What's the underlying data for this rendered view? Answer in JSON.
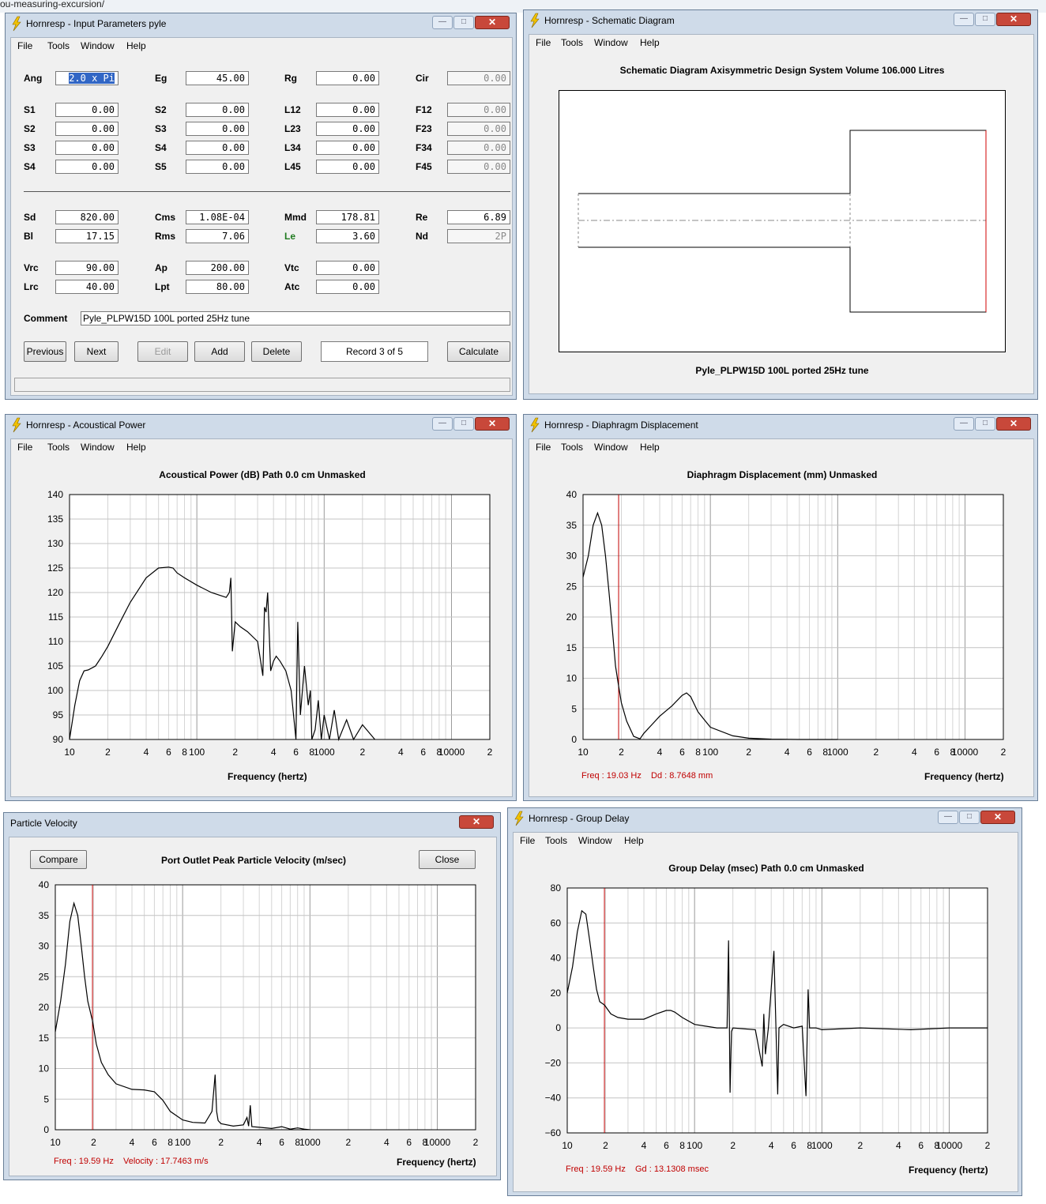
{
  "background_strip": "ou-measuring-excursion/",
  "menu": {
    "file": "File",
    "tools": "Tools",
    "window": "Window",
    "help": "Help"
  },
  "input": {
    "title": "Hornresp - Input Parameters   pyle",
    "labels": {
      "ang": "Ang",
      "eg": "Eg",
      "rg": "Rg",
      "cir": "Cir",
      "s1": "S1",
      "s2a": "S2",
      "s2b": "S2",
      "s3a": "S3",
      "s3b": "S3",
      "s4a": "S4",
      "s4b": "S4",
      "s5": "S5",
      "l12": "L12",
      "l23": "L23",
      "l34": "L34",
      "l45": "L45",
      "f12": "F12",
      "f23": "F23",
      "f34": "F34",
      "f45": "F45",
      "sd": "Sd",
      "cms": "Cms",
      "mmd": "Mmd",
      "re": "Re",
      "bl": "Bl",
      "rms": "Rms",
      "le": "Le",
      "nd": "Nd",
      "vrc": "Vrc",
      "ap": "Ap",
      "vtc": "Vtc",
      "lrc": "Lrc",
      "lpt": "Lpt",
      "atc": "Atc",
      "comment": "Comment"
    },
    "values": {
      "ang": "2.0 x Pi",
      "eg": "45.00",
      "rg": "0.00",
      "cir": "0.00",
      "s1": "0.00",
      "s2a": "0.00",
      "s2b": "0.00",
      "s3a": "0.00",
      "s3b": "0.00",
      "s4a": "0.00",
      "s4b": "0.00",
      "s5": "0.00",
      "l12": "0.00",
      "l23": "0.00",
      "l34": "0.00",
      "l45": "0.00",
      "f12": "0.00",
      "f23": "0.00",
      "f34": "0.00",
      "f45": "0.00",
      "sd": "820.00",
      "cms": "1.08E-04",
      "mmd": "178.81",
      "re": "6.89",
      "bl": "17.15",
      "rms": "7.06",
      "le": "3.60",
      "nd": "2P",
      "vrc": "90.00",
      "ap": "200.00",
      "vtc": "0.00",
      "lrc": "40.00",
      "lpt": "80.00",
      "atc": "0.00"
    },
    "comment": "Pyle_PLPW15D 100L ported 25Hz tune",
    "buttons": {
      "previous": "Previous",
      "next": "Next",
      "edit": "Edit",
      "add": "Add",
      "delete": "Delete",
      "record": "Record 3 of 5",
      "calculate": "Calculate"
    }
  },
  "schematic": {
    "title": "Hornresp - Schematic Diagram",
    "heading": "Schematic Diagram   Axisymmetric Design   System Volume 106.000 Litres",
    "caption": "Pyle_PLPW15D 100L ported 25Hz tune"
  },
  "power": {
    "title": "Hornresp - Acoustical Power",
    "heading": "Acoustical Power (dB)   Path 0.0 cm   Unmasked",
    "xlabel": "Frequency (hertz)"
  },
  "displacement": {
    "title": "Hornresp - Diaphragm Displacement",
    "heading": "Diaphragm Displacement (mm)   Unmasked",
    "xlabel": "Frequency (hertz)",
    "readout_freq": "Freq : 19.03 Hz",
    "readout_val": "Dd : 8.7648 mm"
  },
  "velocity": {
    "title": "Particle Velocity",
    "heading": "Port Outlet Peak Particle Velocity (m/sec)",
    "compare": "Compare",
    "close": "Close",
    "xlabel": "Frequency (hertz)",
    "readout_freq": "Freq : 19.59 Hz",
    "readout_val": "Velocity : 17.7463 m/s"
  },
  "group_delay": {
    "title": "Hornresp - Group Delay",
    "heading": "Group Delay (msec)   Path 0.0 cm   Unmasked",
    "xlabel": "Frequency (hertz)",
    "readout_freq": "Freq : 19.59 Hz",
    "readout_val": "Gd : 13.1308 msec"
  },
  "x_tick_labels": [
    "10",
    "2",
    "4",
    "6",
    "8",
    "100",
    "2",
    "4",
    "6",
    "8",
    "1000",
    "2",
    "4",
    "6",
    "8",
    "10000",
    "2"
  ],
  "colors": {
    "accent_red": "#c00000",
    "title_bar": "#cfdbe9",
    "close_button": "#c8483a",
    "selection": "#3166c5"
  },
  "chart_data": [
    {
      "type": "line",
      "title": "Acoustical Power (dB)   Path 0.0 cm   Unmasked",
      "xlabel": "Frequency (hertz)",
      "ylabel": "",
      "xscale": "log",
      "xlim": [
        10,
        20000
      ],
      "ylim": [
        90,
        140
      ],
      "y_ticks": [
        90,
        95,
        100,
        105,
        110,
        115,
        120,
        125,
        130,
        135,
        140
      ],
      "series": [
        {
          "x": [
            10,
            11,
            12,
            13,
            14,
            16,
            18,
            20,
            25,
            30,
            40,
            50,
            60,
            65,
            70,
            80,
            100,
            130,
            170,
            180,
            185,
            190,
            200,
            220,
            250,
            300,
            330,
            340,
            350,
            360,
            380,
            400,
            420,
            450,
            500,
            550,
            600,
            620,
            650,
            700,
            750,
            780,
            800,
            850,
            900,
            950,
            1000,
            1100,
            1200,
            1300,
            1500,
            1700,
            2000,
            2500
          ],
          "y": [
            90,
            97,
            102,
            104,
            104.2,
            105,
            107,
            109,
            114,
            118,
            123,
            125,
            125.2,
            125,
            124,
            123,
            121.5,
            120,
            119,
            120,
            123,
            108,
            114,
            113,
            112,
            110,
            103,
            117,
            116,
            120,
            104,
            106,
            107,
            106,
            104,
            100,
            90,
            114,
            95,
            105,
            97,
            100,
            90,
            92,
            98,
            90,
            95,
            90,
            96,
            90,
            94,
            90,
            93,
            90
          ]
        }
      ]
    },
    {
      "type": "line",
      "title": "Diaphragm Displacement (mm)   Unmasked",
      "xlabel": "Frequency (hertz)",
      "ylabel": "",
      "xscale": "log",
      "xlim": [
        10,
        20000
      ],
      "ylim": [
        0,
        40
      ],
      "y_ticks": [
        0,
        5,
        10,
        15,
        20,
        25,
        30,
        35,
        40
      ],
      "marker_x": 19.03,
      "series": [
        {
          "x": [
            10,
            11,
            12,
            13,
            14,
            15,
            16,
            17,
            18,
            19.03,
            20,
            22,
            25,
            28,
            30,
            35,
            40,
            50,
            60,
            65,
            70,
            80,
            100,
            150,
            200,
            300,
            500,
            1000
          ],
          "y": [
            26.5,
            30,
            35,
            37,
            35,
            30,
            24,
            18,
            12,
            8.76,
            6,
            3,
            0.5,
            0.1,
            1,
            2.5,
            3.8,
            5.5,
            7.2,
            7.6,
            7,
            4.5,
            2,
            0.6,
            0.2,
            0.05,
            0,
            0
          ]
        }
      ]
    },
    {
      "type": "line",
      "title": "Port Outlet Peak Particle Velocity (m/sec)",
      "xlabel": "Frequency (hertz)",
      "ylabel": "",
      "xscale": "log",
      "xlim": [
        10,
        20000
      ],
      "ylim": [
        0,
        40
      ],
      "y_ticks": [
        0,
        5,
        10,
        15,
        20,
        25,
        30,
        35,
        40
      ],
      "marker_x": 19.59,
      "series": [
        {
          "x": [
            10,
            11,
            12,
            13,
            14,
            15,
            16,
            17,
            18,
            19.59,
            21,
            23,
            26,
            30,
            40,
            50,
            60,
            70,
            80,
            100,
            120,
            150,
            170,
            180,
            185,
            190,
            200,
            250,
            300,
            320,
            330,
            340,
            350,
            400,
            500,
            600,
            700,
            800,
            900,
            1000
          ],
          "y": [
            16,
            21,
            27,
            34,
            37,
            35,
            30,
            25,
            21,
            17.75,
            14,
            11,
            9,
            7.5,
            6.6,
            6.5,
            6.2,
            4.8,
            3,
            1.6,
            1.2,
            1.1,
            3,
            9,
            3,
            1.5,
            1,
            0.6,
            0.8,
            2,
            0.6,
            4,
            0.5,
            0.4,
            0.2,
            0.5,
            0.1,
            0.3,
            0.1,
            0
          ]
        }
      ]
    },
    {
      "type": "line",
      "title": "Group Delay (msec)   Path 0.0 cm   Unmasked",
      "xlabel": "Frequency (hertz)",
      "ylabel": "",
      "xscale": "log",
      "xlim": [
        10,
        20000
      ],
      "ylim": [
        -60,
        80
      ],
      "y_ticks": [
        -60,
        -40,
        -20,
        0,
        20,
        40,
        60,
        80
      ],
      "marker_x": 19.59,
      "series": [
        {
          "x": [
            10,
            11,
            12,
            13,
            14,
            15,
            16,
            17,
            18,
            19.59,
            22,
            25,
            30,
            40,
            50,
            60,
            65,
            70,
            80,
            100,
            150,
            180,
            185,
            190,
            195,
            200,
            300,
            340,
            350,
            360,
            380,
            420,
            450,
            460,
            500,
            600,
            700,
            750,
            780,
            800,
            900,
            1000,
            2000,
            5000,
            10000,
            20000
          ],
          "y": [
            20,
            35,
            55,
            67,
            65,
            50,
            35,
            22,
            15,
            13.1,
            8,
            6,
            5,
            5,
            8,
            10,
            10,
            9,
            6,
            2,
            0,
            0,
            50,
            -37,
            -2,
            0,
            -1,
            -22,
            8,
            -15,
            0,
            44,
            -38,
            0,
            2,
            0,
            1,
            -39,
            22,
            0,
            0,
            -1,
            0,
            -1,
            0,
            0
          ]
        }
      ]
    }
  ]
}
